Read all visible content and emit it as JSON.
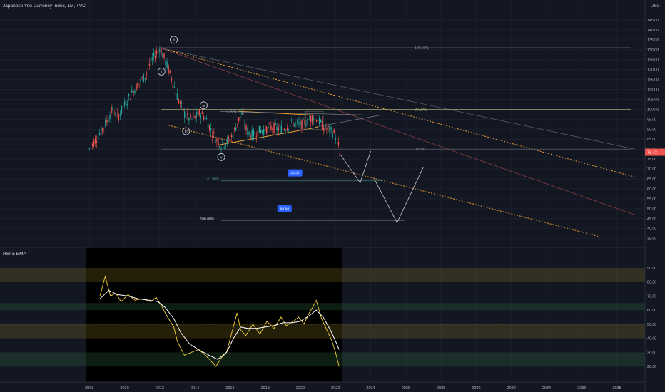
{
  "header": {
    "title": "Japanese Yen Currency Index, 1M, TVC",
    "currency": "USD"
  },
  "rsi_panel": {
    "label": "RSI & EMA"
  },
  "colors": {
    "background": "#131722",
    "bull": "#26a69a",
    "bear": "#ef5350",
    "rsi": "#f5d33c",
    "ema": "#ffffff",
    "channel": "#f0a030",
    "price_badge": "#ef5350"
  },
  "chart_data": [
    {
      "type": "candlestick",
      "title": "Japanese Yen Currency Index, 1M, TVC",
      "x_ticks": [
        "2008",
        "2010",
        "2012",
        "2014",
        "2016",
        "2018",
        "2020",
        "2022",
        "2024",
        "2026",
        "2028",
        "2030",
        "2032",
        "2034",
        "2036",
        "2038"
      ],
      "y_ticks": [
        "145.00",
        "140.00",
        "135.00",
        "130.00",
        "125.00",
        "120.00",
        "115.00",
        "110.00",
        "105.00",
        "100.00",
        "95.00",
        "90.00",
        "85.00",
        "80.00",
        "75.00",
        "70.00",
        "65.00",
        "60.00",
        "55.00",
        "50.00",
        "45.00",
        "40.00",
        "35.00"
      ],
      "ylim": [
        32,
        150
      ],
      "xlim": [
        2007.3,
        2039.6
      ],
      "current_price": "78.42",
      "price_path": [
        [
          2008.0,
          80
        ],
        [
          2008.6,
          88
        ],
        [
          2009.0,
          94
        ],
        [
          2009.3,
          100
        ],
        [
          2009.6,
          96
        ],
        [
          2010.0,
          102
        ],
        [
          2010.4,
          108
        ],
        [
          2010.8,
          113
        ],
        [
          2011.2,
          117
        ],
        [
          2011.5,
          124
        ],
        [
          2011.8,
          128
        ],
        [
          2012.0,
          131
        ],
        [
          2012.2,
          127
        ],
        [
          2012.5,
          120
        ],
        [
          2012.8,
          112
        ],
        [
          2013.1,
          104
        ],
        [
          2013.4,
          98
        ],
        [
          2013.7,
          95
        ],
        [
          2014.0,
          96
        ],
        [
          2014.3,
          98
        ],
        [
          2014.6,
          96
        ],
        [
          2014.9,
          90
        ],
        [
          2015.2,
          85
        ],
        [
          2015.5,
          82
        ],
        [
          2015.9,
          84
        ],
        [
          2016.2,
          88
        ],
        [
          2016.5,
          95
        ],
        [
          2016.7,
          98
        ],
        [
          2016.9,
          90
        ],
        [
          2017.2,
          87
        ],
        [
          2017.6,
          89
        ],
        [
          2018.0,
          90
        ],
        [
          2018.4,
          91
        ],
        [
          2018.8,
          90
        ],
        [
          2019.2,
          91
        ],
        [
          2019.6,
          93
        ],
        [
          2020.0,
          92
        ],
        [
          2020.4,
          94
        ],
        [
          2020.8,
          97
        ],
        [
          2021.0,
          95
        ],
        [
          2021.3,
          91
        ],
        [
          2021.6,
          90
        ],
        [
          2021.9,
          88
        ],
        [
          2022.1,
          85
        ],
        [
          2022.25,
          78
        ]
      ],
      "annotations": {
        "waves": [
          "ii",
          "i",
          "iv",
          "iii",
          "v"
        ],
        "fib_upper": [
          "100.00%",
          "38.20%",
          "0.00%",
          "0.00%"
        ],
        "fib_lower": [
          "61.80%",
          "100.00%"
        ],
        "tags": [
          "## ##",
          "## ##"
        ]
      }
    },
    {
      "type": "line",
      "title": "RSI & EMA",
      "ylim": [
        15,
        95
      ],
      "y_ticks": [
        "90.00",
        "80.00",
        "70.00",
        "60.00",
        "50.00",
        "40.00",
        "30.00",
        "20.00"
      ],
      "series": [
        {
          "values": [
            [
              2008.6,
              70
            ],
            [
              2008.9,
              84
            ],
            [
              2009.2,
              70
            ],
            [
              2009.5,
              72
            ],
            [
              2009.8,
              66
            ],
            [
              2010.2,
              71
            ],
            [
              2010.6,
              67
            ],
            [
              2011.0,
              68
            ],
            [
              2011.5,
              66
            ],
            [
              2011.8,
              69
            ],
            [
              2012.1,
              63
            ],
            [
              2012.4,
              56
            ],
            [
              2012.8,
              48
            ],
            [
              2013.0,
              38
            ],
            [
              2013.4,
              28
            ],
            [
              2013.8,
              30
            ],
            [
              2014.2,
              32
            ],
            [
              2014.6,
              28
            ],
            [
              2014.9,
              24
            ],
            [
              2015.2,
              20
            ],
            [
              2015.5,
              26
            ],
            [
              2015.8,
              30
            ],
            [
              2016.1,
              44
            ],
            [
              2016.4,
              58
            ],
            [
              2016.6,
              46
            ],
            [
              2016.9,
              42
            ],
            [
              2017.3,
              50
            ],
            [
              2017.7,
              43
            ],
            [
              2018.1,
              52
            ],
            [
              2018.5,
              47
            ],
            [
              2018.9,
              55
            ],
            [
              2019.2,
              49
            ],
            [
              2019.6,
              52
            ],
            [
              2019.9,
              55
            ],
            [
              2020.2,
              50
            ],
            [
              2020.5,
              58
            ],
            [
              2020.7,
              62
            ],
            [
              2020.9,
              67
            ],
            [
              2021.2,
              54
            ],
            [
              2021.5,
              46
            ],
            [
              2021.8,
              38
            ],
            [
              2022.0,
              30
            ],
            [
              2022.2,
              20
            ]
          ]
        },
        {
          "values": [
            [
              2008.6,
              68
            ],
            [
              2009.1,
              74
            ],
            [
              2009.6,
              71
            ],
            [
              2010.2,
              70
            ],
            [
              2010.8,
              68
            ],
            [
              2011.4,
              67
            ],
            [
              2011.9,
              66
            ],
            [
              2012.3,
              62
            ],
            [
              2012.8,
              54
            ],
            [
              2013.2,
              44
            ],
            [
              2013.7,
              36
            ],
            [
              2014.2,
              32
            ],
            [
              2014.8,
              28
            ],
            [
              2015.3,
              25
            ],
            [
              2015.8,
              30
            ],
            [
              2016.2,
              40
            ],
            [
              2016.6,
              48
            ],
            [
              2017.0,
              47
            ],
            [
              2017.5,
              47
            ],
            [
              2018.0,
              48
            ],
            [
              2018.5,
              49
            ],
            [
              2019.0,
              51
            ],
            [
              2019.5,
              51
            ],
            [
              2020.0,
              52
            ],
            [
              2020.5,
              56
            ],
            [
              2020.9,
              60
            ],
            [
              2021.3,
              55
            ],
            [
              2021.7,
              46
            ],
            [
              2022.0,
              38
            ],
            [
              2022.2,
              32
            ]
          ]
        }
      ]
    }
  ]
}
